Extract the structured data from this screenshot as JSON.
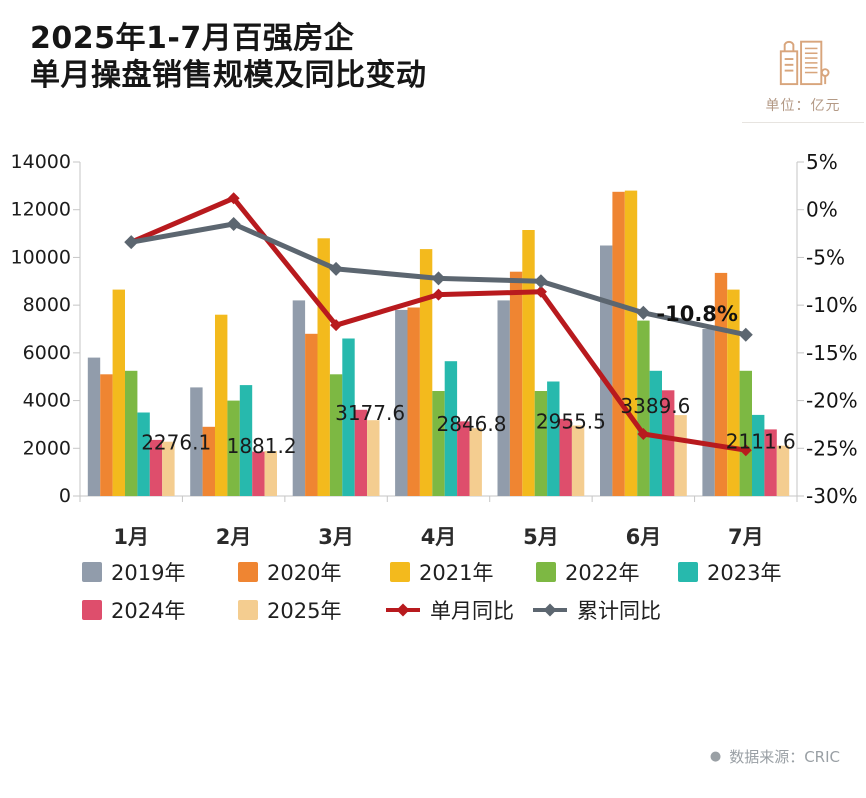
{
  "header": {
    "title_line1": "2025年1-7月百强房企",
    "title_line2": "单月操盘销售规模及同比变动",
    "unit_label": "单位：亿元"
  },
  "chart_data": {
    "type": "bar",
    "subtype": "grouped-bars-with-two-lines",
    "unit": "亿元",
    "categories": [
      "1月",
      "2月",
      "3月",
      "4月",
      "5月",
      "6月",
      "7月"
    ],
    "series": [
      {
        "name": "2019年",
        "color": "#919cab",
        "values": [
          5800,
          4550,
          8200,
          7800,
          8200,
          10500,
          7000
        ]
      },
      {
        "name": "2020年",
        "color": "#ef8532",
        "values": [
          5100,
          2900,
          6800,
          7900,
          9400,
          12750,
          9350
        ]
      },
      {
        "name": "2021年",
        "color": "#f3ba1d",
        "values": [
          8650,
          7600,
          10800,
          10350,
          11150,
          12800,
          8650
        ]
      },
      {
        "name": "2022年",
        "color": "#7db843",
        "values": [
          5250,
          4000,
          5100,
          4400,
          4400,
          7350,
          5250
        ]
      },
      {
        "name": "2023年",
        "color": "#27b9ad",
        "values": [
          3500,
          4650,
          6600,
          5650,
          4800,
          5250,
          3400
        ]
      },
      {
        "name": "2024年",
        "color": "#de4e6c",
        "values": [
          2350,
          1860,
          3615,
          3125,
          3230,
          4430,
          2790
        ]
      },
      {
        "name": "2025年",
        "color": "#f4cd90",
        "values": [
          2276.1,
          1881.2,
          3177.6,
          2846.8,
          2955.5,
          3389.6,
          2111.6
        ]
      }
    ],
    "line_series": [
      {
        "name": "单月同比",
        "color": "#b81a1e",
        "axis": "right",
        "values": [
          -3.4,
          1.2,
          -12.1,
          -8.9,
          -8.6,
          -23.5,
          -25.2
        ]
      },
      {
        "name": "累计同比",
        "color": "#5c6670",
        "axis": "right",
        "values": [
          -3.4,
          -1.5,
          -6.2,
          -7.2,
          -7.5,
          -10.8,
          -13.1
        ]
      }
    ],
    "value_labels": {
      "series": "2025年",
      "texts": [
        "2276.1",
        "1881.2",
        "3177.6",
        "2846.8",
        "2955.5",
        "3389.6",
        "2111.6"
      ]
    },
    "annotation": {
      "text": "-10.8%",
      "series": "累计同比",
      "category": "6月",
      "value": -10.8
    },
    "left_axis": {
      "min": 0,
      "max": 14000,
      "ticks": [
        0,
        2000,
        4000,
        6000,
        8000,
        10000,
        12000,
        14000
      ]
    },
    "right_axis": {
      "min": -30,
      "max": 5,
      "tick_values": [
        5,
        0,
        -5,
        -10,
        -15,
        -20,
        -25,
        -30
      ],
      "tick_labels": [
        "5%",
        "0%",
        "-5%",
        "-10%",
        "-15%",
        "-20%",
        "-25%",
        "-30%"
      ]
    },
    "legend_position": "bottom",
    "grid": false
  },
  "footer": {
    "source_label": "数据来源：CRIC"
  }
}
